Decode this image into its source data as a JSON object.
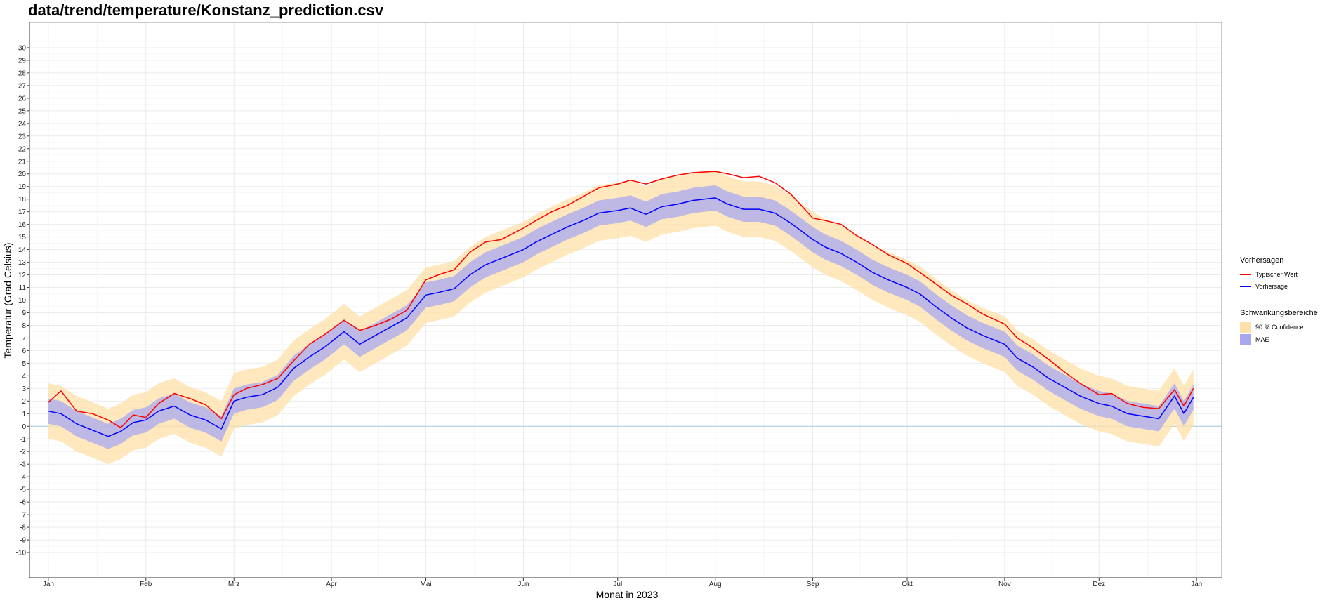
{
  "chart_data": {
    "type": "line",
    "title": "data/trend/temperature/Konstanz_prediction.csv",
    "xlabel": "Monat in 2023",
    "ylabel": "Temperatur (Grad Celsius)",
    "ylim": [
      -12,
      32
    ],
    "yticks": [
      -10,
      -9,
      -8,
      -7,
      -6,
      -5,
      -4,
      -3,
      -2,
      -1,
      0,
      1,
      2,
      3,
      4,
      5,
      6,
      7,
      8,
      9,
      10,
      11,
      12,
      13,
      14,
      15,
      16,
      17,
      18,
      19,
      20,
      21,
      22,
      23,
      24,
      25,
      26,
      27,
      28,
      29,
      30
    ],
    "x_domain": [
      "2022-12-26",
      "2024-01-09"
    ],
    "month_ticks": [
      {
        "date": "2023-01-01",
        "label": "Jan"
      },
      {
        "date": "2023-02-01",
        "label": "Feb"
      },
      {
        "date": "2023-03-01",
        "label": "Mrz"
      },
      {
        "date": "2023-04-01",
        "label": "Apr"
      },
      {
        "date": "2023-05-01",
        "label": "Mai"
      },
      {
        "date": "2023-06-01",
        "label": "Jun"
      },
      {
        "date": "2023-07-01",
        "label": "Jul"
      },
      {
        "date": "2023-08-01",
        "label": "Aug"
      },
      {
        "date": "2023-09-01",
        "label": "Sep"
      },
      {
        "date": "2023-10-01",
        "label": "Okt"
      },
      {
        "date": "2023-11-01",
        "label": "Nov"
      },
      {
        "date": "2023-12-01",
        "label": "Dez"
      },
      {
        "date": "2024-01-01",
        "label": "Jan"
      }
    ],
    "grid": true,
    "zero_line": true,
    "legend_position": "right",
    "legend": {
      "lines_title": "Vorhersagen",
      "bands_title": "Schwankungsbereiche",
      "lines": [
        {
          "label": "Typischer Wert",
          "color": "#ff0000"
        },
        {
          "label": "Vorhersage",
          "color": "#0000ff"
        }
      ],
      "bands": [
        {
          "label": "90 % Confidence",
          "color": "#ffe0a8"
        },
        {
          "label": "MAE",
          "color": "#a8a8f0"
        }
      ]
    },
    "series": [
      {
        "name": "Typischer Wert",
        "color": "#ff0000",
        "points": [
          [
            "2023-01-01",
            1.9
          ],
          [
            "2023-01-05",
            2.8
          ],
          [
            "2023-01-10",
            1.2
          ],
          [
            "2023-01-15",
            1.0
          ],
          [
            "2023-01-20",
            0.5
          ],
          [
            "2023-01-24",
            -0.1
          ],
          [
            "2023-01-28",
            0.9
          ],
          [
            "2023-02-01",
            0.7
          ],
          [
            "2023-02-05",
            1.8
          ],
          [
            "2023-02-10",
            2.6
          ],
          [
            "2023-02-15",
            2.2
          ],
          [
            "2023-02-20",
            1.7
          ],
          [
            "2023-02-25",
            0.6
          ],
          [
            "2023-03-01",
            2.5
          ],
          [
            "2023-03-05",
            3.0
          ],
          [
            "2023-03-10",
            3.3
          ],
          [
            "2023-03-15",
            3.8
          ],
          [
            "2023-03-20",
            5.2
          ],
          [
            "2023-03-25",
            6.5
          ],
          [
            "2023-03-30",
            7.3
          ],
          [
            "2023-04-05",
            8.4
          ],
          [
            "2023-04-10",
            7.6
          ],
          [
            "2023-04-15",
            8.0
          ],
          [
            "2023-04-20",
            8.5
          ],
          [
            "2023-04-25",
            9.2
          ],
          [
            "2023-05-01",
            11.6
          ],
          [
            "2023-05-05",
            12.0
          ],
          [
            "2023-05-10",
            12.4
          ],
          [
            "2023-05-15",
            13.8
          ],
          [
            "2023-05-20",
            14.6
          ],
          [
            "2023-05-25",
            14.8
          ],
          [
            "2023-06-01",
            15.7
          ],
          [
            "2023-06-05",
            16.3
          ],
          [
            "2023-06-10",
            17.0
          ],
          [
            "2023-06-15",
            17.5
          ],
          [
            "2023-06-20",
            18.2
          ],
          [
            "2023-06-25",
            18.9
          ],
          [
            "2023-07-01",
            19.2
          ],
          [
            "2023-07-05",
            19.5
          ],
          [
            "2023-07-10",
            19.2
          ],
          [
            "2023-07-15",
            19.6
          ],
          [
            "2023-07-20",
            19.9
          ],
          [
            "2023-07-25",
            20.1
          ],
          [
            "2023-08-01",
            20.2
          ],
          [
            "2023-08-05",
            20.0
          ],
          [
            "2023-08-10",
            19.7
          ],
          [
            "2023-08-15",
            19.8
          ],
          [
            "2023-08-20",
            19.3
          ],
          [
            "2023-08-25",
            18.4
          ],
          [
            "2023-09-01",
            16.5
          ],
          [
            "2023-09-05",
            16.3
          ],
          [
            "2023-09-10",
            16.0
          ],
          [
            "2023-09-15",
            15.1
          ],
          [
            "2023-09-20",
            14.4
          ],
          [
            "2023-09-25",
            13.6
          ],
          [
            "2023-10-01",
            12.9
          ],
          [
            "2023-10-05",
            12.2
          ],
          [
            "2023-10-10",
            11.3
          ],
          [
            "2023-10-15",
            10.4
          ],
          [
            "2023-10-20",
            9.7
          ],
          [
            "2023-10-25",
            8.9
          ],
          [
            "2023-11-01",
            8.1
          ],
          [
            "2023-11-05",
            7.0
          ],
          [
            "2023-11-10",
            6.2
          ],
          [
            "2023-11-15",
            5.3
          ],
          [
            "2023-11-20",
            4.3
          ],
          [
            "2023-11-25",
            3.4
          ],
          [
            "2023-12-01",
            2.5
          ],
          [
            "2023-12-05",
            2.6
          ],
          [
            "2023-12-10",
            1.8
          ],
          [
            "2023-12-15",
            1.5
          ],
          [
            "2023-12-20",
            1.4
          ],
          [
            "2023-12-25",
            2.9
          ],
          [
            "2023-12-28",
            1.6
          ],
          [
            "2023-12-31",
            3.0
          ]
        ]
      },
      {
        "name": "Vorhersage",
        "color": "#0000ff",
        "points": [
          [
            "2023-01-01",
            1.2
          ],
          [
            "2023-01-05",
            1.0
          ],
          [
            "2023-01-10",
            0.2
          ],
          [
            "2023-01-15",
            -0.3
          ],
          [
            "2023-01-20",
            -0.8
          ],
          [
            "2023-01-24",
            -0.4
          ],
          [
            "2023-01-28",
            0.3
          ],
          [
            "2023-02-01",
            0.5
          ],
          [
            "2023-02-05",
            1.2
          ],
          [
            "2023-02-10",
            1.6
          ],
          [
            "2023-02-15",
            0.9
          ],
          [
            "2023-02-20",
            0.5
          ],
          [
            "2023-02-25",
            -0.2
          ],
          [
            "2023-03-01",
            2.0
          ],
          [
            "2023-03-05",
            2.3
          ],
          [
            "2023-03-10",
            2.5
          ],
          [
            "2023-03-15",
            3.1
          ],
          [
            "2023-03-20",
            4.6
          ],
          [
            "2023-03-25",
            5.5
          ],
          [
            "2023-03-30",
            6.3
          ],
          [
            "2023-04-05",
            7.5
          ],
          [
            "2023-04-10",
            6.5
          ],
          [
            "2023-04-15",
            7.2
          ],
          [
            "2023-04-20",
            7.9
          ],
          [
            "2023-04-25",
            8.6
          ],
          [
            "2023-05-01",
            10.4
          ],
          [
            "2023-05-05",
            10.6
          ],
          [
            "2023-05-10",
            10.9
          ],
          [
            "2023-05-15",
            12.0
          ],
          [
            "2023-05-20",
            12.8
          ],
          [
            "2023-05-25",
            13.3
          ],
          [
            "2023-06-01",
            14.0
          ],
          [
            "2023-06-05",
            14.6
          ],
          [
            "2023-06-10",
            15.2
          ],
          [
            "2023-06-15",
            15.8
          ],
          [
            "2023-06-20",
            16.3
          ],
          [
            "2023-06-25",
            16.9
          ],
          [
            "2023-07-01",
            17.1
          ],
          [
            "2023-07-05",
            17.3
          ],
          [
            "2023-07-10",
            16.8
          ],
          [
            "2023-07-15",
            17.4
          ],
          [
            "2023-07-20",
            17.6
          ],
          [
            "2023-07-25",
            17.9
          ],
          [
            "2023-08-01",
            18.1
          ],
          [
            "2023-08-05",
            17.6
          ],
          [
            "2023-08-10",
            17.2
          ],
          [
            "2023-08-15",
            17.2
          ],
          [
            "2023-08-20",
            16.9
          ],
          [
            "2023-08-25",
            16.1
          ],
          [
            "2023-09-01",
            14.8
          ],
          [
            "2023-09-05",
            14.2
          ],
          [
            "2023-09-10",
            13.7
          ],
          [
            "2023-09-15",
            13.0
          ],
          [
            "2023-09-20",
            12.2
          ],
          [
            "2023-09-25",
            11.6
          ],
          [
            "2023-10-01",
            11.0
          ],
          [
            "2023-10-05",
            10.5
          ],
          [
            "2023-10-10",
            9.5
          ],
          [
            "2023-10-15",
            8.6
          ],
          [
            "2023-10-20",
            7.8
          ],
          [
            "2023-10-25",
            7.2
          ],
          [
            "2023-11-01",
            6.5
          ],
          [
            "2023-11-05",
            5.4
          ],
          [
            "2023-11-10",
            4.7
          ],
          [
            "2023-11-15",
            3.8
          ],
          [
            "2023-11-20",
            3.1
          ],
          [
            "2023-11-25",
            2.4
          ],
          [
            "2023-12-01",
            1.8
          ],
          [
            "2023-12-05",
            1.6
          ],
          [
            "2023-12-10",
            1.0
          ],
          [
            "2023-12-15",
            0.8
          ],
          [
            "2023-12-20",
            0.6
          ],
          [
            "2023-12-25",
            2.4
          ],
          [
            "2023-12-28",
            1.0
          ],
          [
            "2023-12-31",
            2.3
          ]
        ]
      }
    ],
    "bands": [
      {
        "name": "90 % Confidence",
        "color": "#ffe0a8",
        "half_width": 2.2
      },
      {
        "name": "MAE",
        "color": "#a8a8f0",
        "half_width": 1.0
      }
    ]
  }
}
